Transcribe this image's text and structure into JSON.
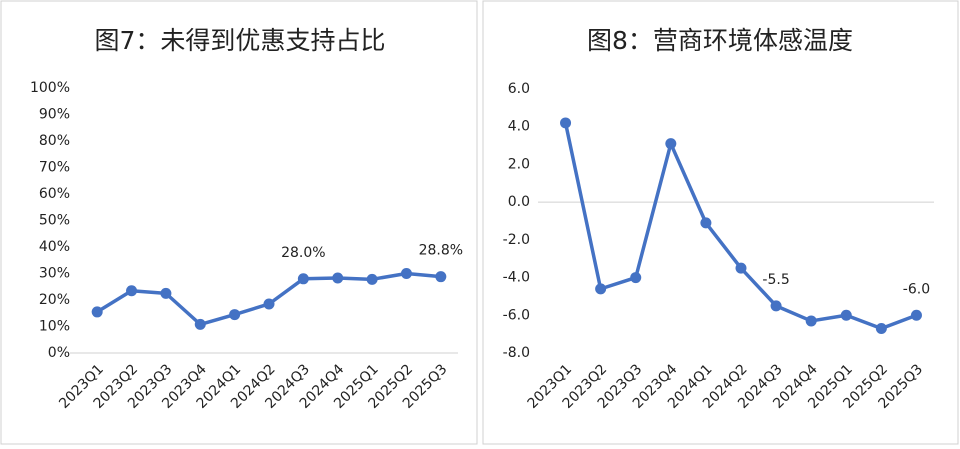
{
  "chart_data": [
    {
      "type": "line",
      "title": "图7：未得到优惠支持占比",
      "categories": [
        "2023Q1",
        "2023Q2",
        "2023Q3",
        "2023Q4",
        "2024Q1",
        "2024Q2",
        "2024Q3",
        "2024Q4",
        "2025Q1",
        "2025Q2",
        "2025Q3"
      ],
      "values": [
        15.5,
        23.5,
        22.5,
        10.8,
        14.5,
        18.5,
        28.0,
        28.3,
        27.8,
        30.0,
        28.8
      ],
      "value_labels": [
        null,
        null,
        null,
        null,
        null,
        null,
        "28.0%",
        null,
        null,
        null,
        "28.8%"
      ],
      "color": "#4472c4",
      "ylim": [
        0,
        100
      ],
      "yticks": [
        {
          "value": 0,
          "label": "0%"
        },
        {
          "value": 10,
          "label": "10%"
        },
        {
          "value": 20,
          "label": "20%"
        },
        {
          "value": 30,
          "label": "30%"
        },
        {
          "value": 40,
          "label": "40%"
        },
        {
          "value": 50,
          "label": "50%"
        },
        {
          "value": 60,
          "label": "60%"
        },
        {
          "value": 70,
          "label": "70%"
        },
        {
          "value": 80,
          "label": "80%"
        },
        {
          "value": 90,
          "label": "90%"
        },
        {
          "value": 100,
          "label": "100%"
        }
      ]
    },
    {
      "type": "line",
      "title": "图8：营商环境体感温度",
      "categories": [
        "2023Q1",
        "2023Q2",
        "2023Q3",
        "2023Q4",
        "2024Q1",
        "2024Q2",
        "2024Q3",
        "2024Q4",
        "2025Q1",
        "2025Q2",
        "2025Q3"
      ],
      "values": [
        4.2,
        -4.6,
        -4.0,
        3.1,
        -1.1,
        -3.5,
        -5.5,
        -6.3,
        -6.0,
        -6.7,
        -6.0
      ],
      "value_labels": [
        null,
        null,
        null,
        null,
        null,
        null,
        "-5.5",
        null,
        null,
        null,
        "-6.0"
      ],
      "color": "#4472c4",
      "ylim": [
        -8,
        6
      ],
      "yticks": [
        {
          "value": 6,
          "label": "6.0"
        },
        {
          "value": 4,
          "label": "4.0"
        },
        {
          "value": 2,
          "label": "2.0"
        },
        {
          "value": 0,
          "label": "0.0"
        },
        {
          "value": -2,
          "label": "-2.0"
        },
        {
          "value": -4,
          "label": "-4.0"
        },
        {
          "value": -6,
          "label": "-6.0"
        },
        {
          "value": -8,
          "label": "-8.0"
        }
      ]
    }
  ]
}
